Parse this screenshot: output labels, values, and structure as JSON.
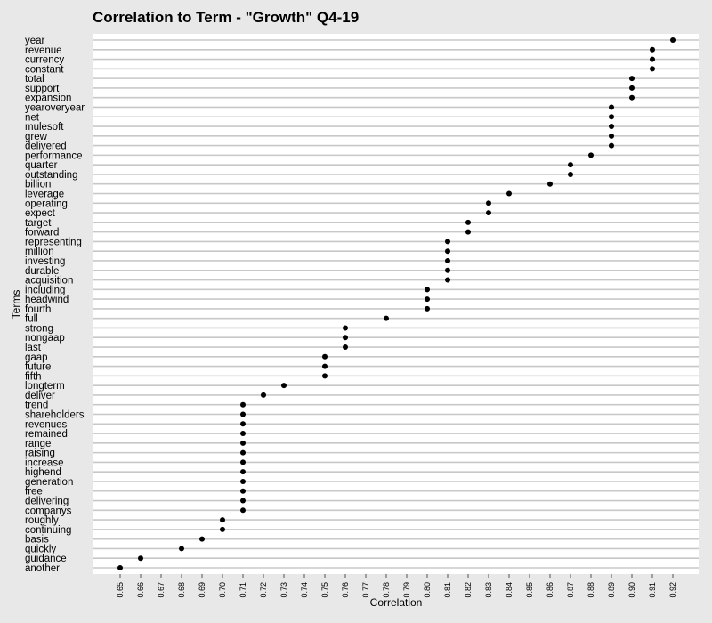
{
  "chart_data": {
    "type": "scatter",
    "title": "Correlation to Term - \"Growth\" Q4-19",
    "xlabel": "Correlation",
    "ylabel": "Terms",
    "xlim": [
      0.645,
      0.93
    ],
    "x_ticks": [
      "0.65",
      "0.66",
      "0.67",
      "0.68",
      "0.69",
      "0.70",
      "0.71",
      "0.72",
      "0.73",
      "0.74",
      "0.75",
      "0.76",
      "0.77",
      "0.78",
      "0.79",
      "0.80",
      "0.81",
      "0.82",
      "0.83",
      "0.84",
      "0.85",
      "0.86",
      "0.87",
      "0.88",
      "0.89",
      "0.90",
      "0.91",
      "0.92"
    ],
    "grid": "horizontal",
    "points": [
      {
        "term": "year",
        "value": 0.92
      },
      {
        "term": "revenue",
        "value": 0.91
      },
      {
        "term": "currency",
        "value": 0.91
      },
      {
        "term": "constant",
        "value": 0.91
      },
      {
        "term": "total",
        "value": 0.9
      },
      {
        "term": "support",
        "value": 0.9
      },
      {
        "term": "expansion",
        "value": 0.9
      },
      {
        "term": "yearoveryear",
        "value": 0.89
      },
      {
        "term": "net",
        "value": 0.89
      },
      {
        "term": "mulesoft",
        "value": 0.89
      },
      {
        "term": "grew",
        "value": 0.89
      },
      {
        "term": "delivered",
        "value": 0.89
      },
      {
        "term": "performance",
        "value": 0.88
      },
      {
        "term": "quarter",
        "value": 0.87
      },
      {
        "term": "outstanding",
        "value": 0.87
      },
      {
        "term": "billion",
        "value": 0.86
      },
      {
        "term": "leverage",
        "value": 0.84
      },
      {
        "term": "operating",
        "value": 0.83
      },
      {
        "term": "expect",
        "value": 0.83
      },
      {
        "term": "target",
        "value": 0.82
      },
      {
        "term": "forward",
        "value": 0.82
      },
      {
        "term": "representing",
        "value": 0.81
      },
      {
        "term": "million",
        "value": 0.81
      },
      {
        "term": "investing",
        "value": 0.81
      },
      {
        "term": "durable",
        "value": 0.81
      },
      {
        "term": "acquisition",
        "value": 0.81
      },
      {
        "term": "including",
        "value": 0.8
      },
      {
        "term": "headwind",
        "value": 0.8
      },
      {
        "term": "fourth",
        "value": 0.8
      },
      {
        "term": "full",
        "value": 0.78
      },
      {
        "term": "strong",
        "value": 0.76
      },
      {
        "term": "nongaap",
        "value": 0.76
      },
      {
        "term": "last",
        "value": 0.76
      },
      {
        "term": "gaap",
        "value": 0.75
      },
      {
        "term": "future",
        "value": 0.75
      },
      {
        "term": "fifth",
        "value": 0.75
      },
      {
        "term": "longterm",
        "value": 0.73
      },
      {
        "term": "deliver",
        "value": 0.72
      },
      {
        "term": "trend",
        "value": 0.71
      },
      {
        "term": "shareholders",
        "value": 0.71
      },
      {
        "term": "revenues",
        "value": 0.71
      },
      {
        "term": "remained",
        "value": 0.71
      },
      {
        "term": "range",
        "value": 0.71
      },
      {
        "term": "raising",
        "value": 0.71
      },
      {
        "term": "increase",
        "value": 0.71
      },
      {
        "term": "highend",
        "value": 0.71
      },
      {
        "term": "generation",
        "value": 0.71
      },
      {
        "term": "free",
        "value": 0.71
      },
      {
        "term": "delivering",
        "value": 0.71
      },
      {
        "term": "companys",
        "value": 0.71
      },
      {
        "term": "roughly",
        "value": 0.7
      },
      {
        "term": "continuing",
        "value": 0.7
      },
      {
        "term": "basis",
        "value": 0.69
      },
      {
        "term": "quickly",
        "value": 0.68
      },
      {
        "term": "guidance",
        "value": 0.66
      },
      {
        "term": "another",
        "value": 0.65
      }
    ],
    "colors": {
      "background": "#e8e8e8",
      "panel": "#ffffff",
      "grid": "#c8c8c8",
      "point": "#000000"
    }
  }
}
